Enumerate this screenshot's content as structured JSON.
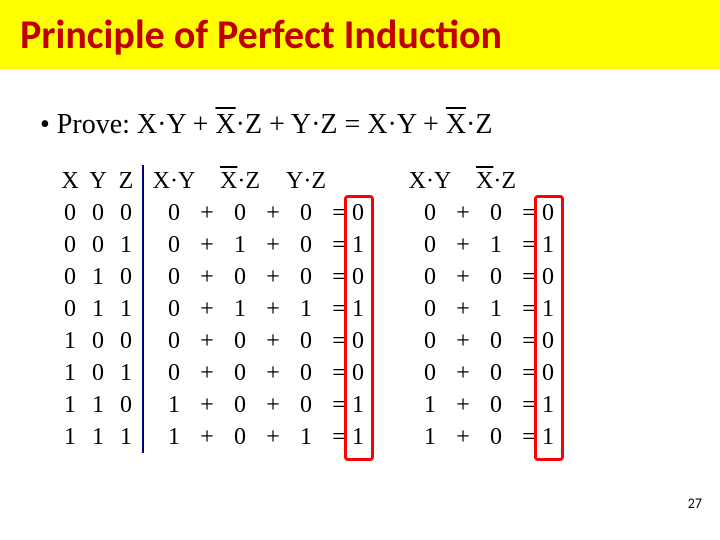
{
  "title": "Principle of Perfect Induction",
  "prove_prefix": "• Prove: ",
  "prove_expr_parts": {
    "a1": "X·Y + ",
    "a2": "X",
    "a3": "·Z + Y·Z = X·Y + ",
    "a4": "X",
    "a5": "·Z"
  },
  "headers": {
    "X": "X",
    "Y": "Y",
    "Z": "Z",
    "XY": "X·Y",
    "XbarZ_X": "X",
    "XbarZ_rest": "·Z",
    "YZ": "Y·Z"
  },
  "rows": {
    "X": [
      "0",
      "0",
      "0",
      "0",
      "1",
      "1",
      "1",
      "1"
    ],
    "Y": [
      "0",
      "0",
      "1",
      "1",
      "0",
      "0",
      "1",
      "1"
    ],
    "Z": [
      "0",
      "1",
      "0",
      "1",
      "0",
      "1",
      "0",
      "1"
    ],
    "XY": [
      "0",
      "0",
      "0",
      "0",
      "0",
      "0",
      "1",
      "1"
    ],
    "XbZ": [
      "0",
      "1",
      "0",
      "1",
      "0",
      "0",
      "0",
      "0"
    ],
    "YZ": [
      "0",
      "0",
      "0",
      "1",
      "0",
      "0",
      "0",
      "1"
    ],
    "R1": [
      "0",
      "1",
      "0",
      "1",
      "0",
      "0",
      "1",
      "1"
    ],
    "XY2": [
      "0",
      "0",
      "0",
      "0",
      "0",
      "0",
      "1",
      "1"
    ],
    "XbZ2": [
      "0",
      "1",
      "0",
      "1",
      "0",
      "0",
      "0",
      "0"
    ],
    "R2": [
      "0",
      "1",
      "0",
      "1",
      "0",
      "0",
      "1",
      "1"
    ]
  },
  "plus": "+",
  "eq": "=",
  "page_number": "27",
  "colors": {
    "title_bg": "#ffff00",
    "title_fg": "#c00000",
    "vline": "#000080",
    "red_box": "#ff0000"
  }
}
